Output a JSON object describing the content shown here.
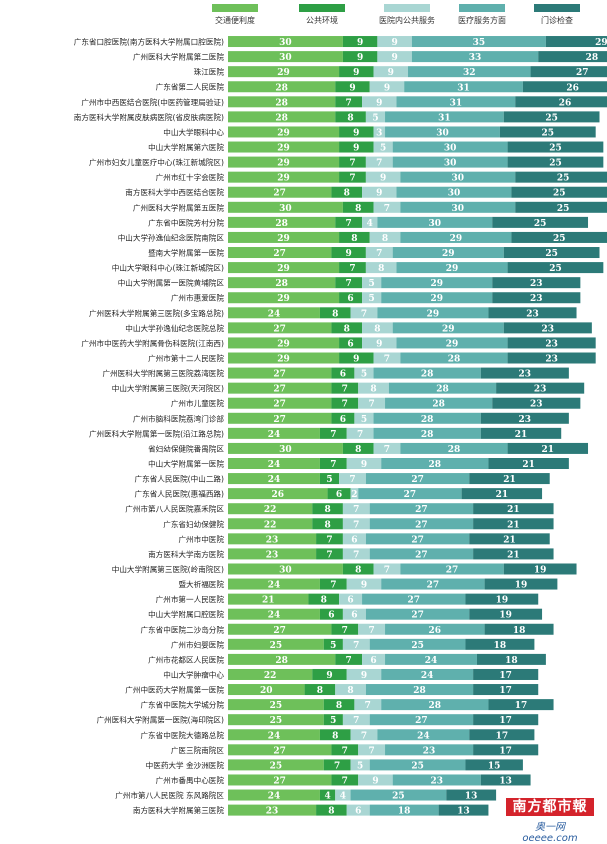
{
  "chart_data": {
    "type": "bar",
    "stacked": true,
    "orientation": "horizontal",
    "legend_position": "top",
    "colors": [
      "#6ec05a",
      "#2e9f45",
      "#a9d6d3",
      "#5fb0ad",
      "#2c7a78"
    ],
    "series": [
      {
        "name": "交通便利度",
        "values": [
          30,
          30,
          29,
          28,
          28,
          28,
          29,
          29,
          29,
          29,
          27,
          30,
          28,
          29,
          27,
          29,
          28,
          29,
          24,
          27,
          29,
          29,
          27,
          27,
          27,
          27,
          24,
          30,
          24,
          24,
          26,
          22,
          22,
          23,
          23,
          30,
          24,
          21,
          24,
          27,
          25,
          28,
          22,
          20,
          25,
          25,
          24,
          27,
          25,
          27,
          24,
          23
        ]
      },
      {
        "name": "公共环境",
        "values": [
          9,
          9,
          9,
          9,
          7,
          8,
          9,
          9,
          7,
          7,
          8,
          8,
          7,
          8,
          9,
          7,
          7,
          6,
          8,
          8,
          6,
          9,
          6,
          7,
          7,
          6,
          7,
          8,
          7,
          5,
          6,
          8,
          8,
          7,
          7,
          8,
          7,
          8,
          6,
          7,
          5,
          7,
          9,
          8,
          8,
          5,
          8,
          7,
          7,
          7,
          4,
          8
        ]
      },
      {
        "name": "医院内公共服务",
        "values": [
          9,
          9,
          9,
          9,
          9,
          5,
          3,
          5,
          7,
          9,
          9,
          7,
          4,
          8,
          7,
          8,
          5,
          5,
          7,
          8,
          9,
          7,
          5,
          8,
          7,
          5,
          7,
          7,
          9,
          7,
          2,
          7,
          7,
          6,
          7,
          7,
          9,
          6,
          6,
          7,
          7,
          6,
          9,
          8,
          7,
          7,
          7,
          7,
          5,
          9,
          4,
          6
        ]
      },
      {
        "name": "医疗服务方面",
        "values": [
          35,
          33,
          32,
          31,
          31,
          31,
          30,
          30,
          30,
          30,
          30,
          30,
          30,
          29,
          29,
          29,
          29,
          29,
          29,
          29,
          29,
          28,
          28,
          28,
          28,
          28,
          28,
          28,
          28,
          27,
          27,
          27,
          27,
          27,
          27,
          27,
          27,
          27,
          27,
          26,
          25,
          24,
          24,
          28,
          28,
          27,
          24,
          23,
          25,
          23,
          25,
          18
        ]
      },
      {
        "name": "门诊检查",
        "values": [
          29,
          28,
          27,
          26,
          26,
          25,
          25,
          25,
          25,
          25,
          25,
          25,
          25,
          25,
          25,
          25,
          23,
          23,
          23,
          23,
          23,
          23,
          23,
          23,
          23,
          23,
          21,
          21,
          21,
          21,
          21,
          21,
          21,
          21,
          21,
          19,
          19,
          19,
          19,
          18,
          18,
          18,
          17,
          17,
          17,
          17,
          17,
          17,
          15,
          13,
          13,
          13
        ]
      }
    ],
    "categories": [
      "广东省口腔医院(南方医科大学附属口腔医院)",
      "广州医科大学附属第二医院",
      "珠江医院",
      "广东省第二人民医院",
      "广州市中西医结合医院(中医药管理局验证)",
      "南方医科大学附属皮肤病医院(省皮肤病医院)",
      "中山大学眼科中心",
      "中山大学附属第六医院",
      "广州市妇女儿童医疗中心(珠江新城院区)",
      "广州市红十字会医院",
      "南方医科大学中西医结合医院",
      "广州医科大学附属第五医院",
      "广东省中医院芳村分院",
      "中山大学孙逸仙纪念医院南院区",
      "暨南大学附属第一医院",
      "中山大学眼科中心(珠江新城院区)",
      "中山大学附属第一医院黄埔院区",
      "广州市惠爱医院",
      "广州医科大学附属第三医院(多宝路总院)",
      "中山大学孙逸仙纪念医院总院",
      "广州市中医药大学附属骨伤科医院(江南西)",
      "广州市第十二人民医院",
      "广州医科大学附属第三医院荔湾医院",
      "中山大学附属第三医院(天河院区)",
      "广州市儿童医院",
      "广州市脑科医院荔湾门诊部",
      "广州医科大学附属第一医院(沿江路总院)",
      "省妇幼保健院番禺院区",
      "中山大学附属第一医院",
      "广东省人民医院(中山二路)",
      "广东省人民医院(惠福西路)",
      "广州市第八人民医院嘉禾院区",
      "广东省妇幼保健院",
      "广州市中医院",
      "南方医科大学南方医院",
      "中山大学附属第三医院(岭南院区)",
      "暨大祈福医院",
      "广州市第一人民医院",
      "中山大学附属口腔医院",
      "广东省中医院二沙岛分院",
      "广州市妇婴医院",
      "广州市花都区人民医院",
      "中山大学肿瘤中心",
      "广州中医药大学附属第一医院",
      "广东省中医院大学城分院",
      "广州医科大学附属第一医院(海印院区)",
      "广东省中医院大德路总院",
      "广医三院南院区",
      "中医药大学 金沙洲医院",
      "广州市番禺中心医院",
      "广州市第八人民医院 东风路院区",
      "南方医科大学附属第三医院"
    ]
  },
  "watermark": {
    "name": "南方都市報",
    "site": "奥一网 oeeee.com"
  }
}
